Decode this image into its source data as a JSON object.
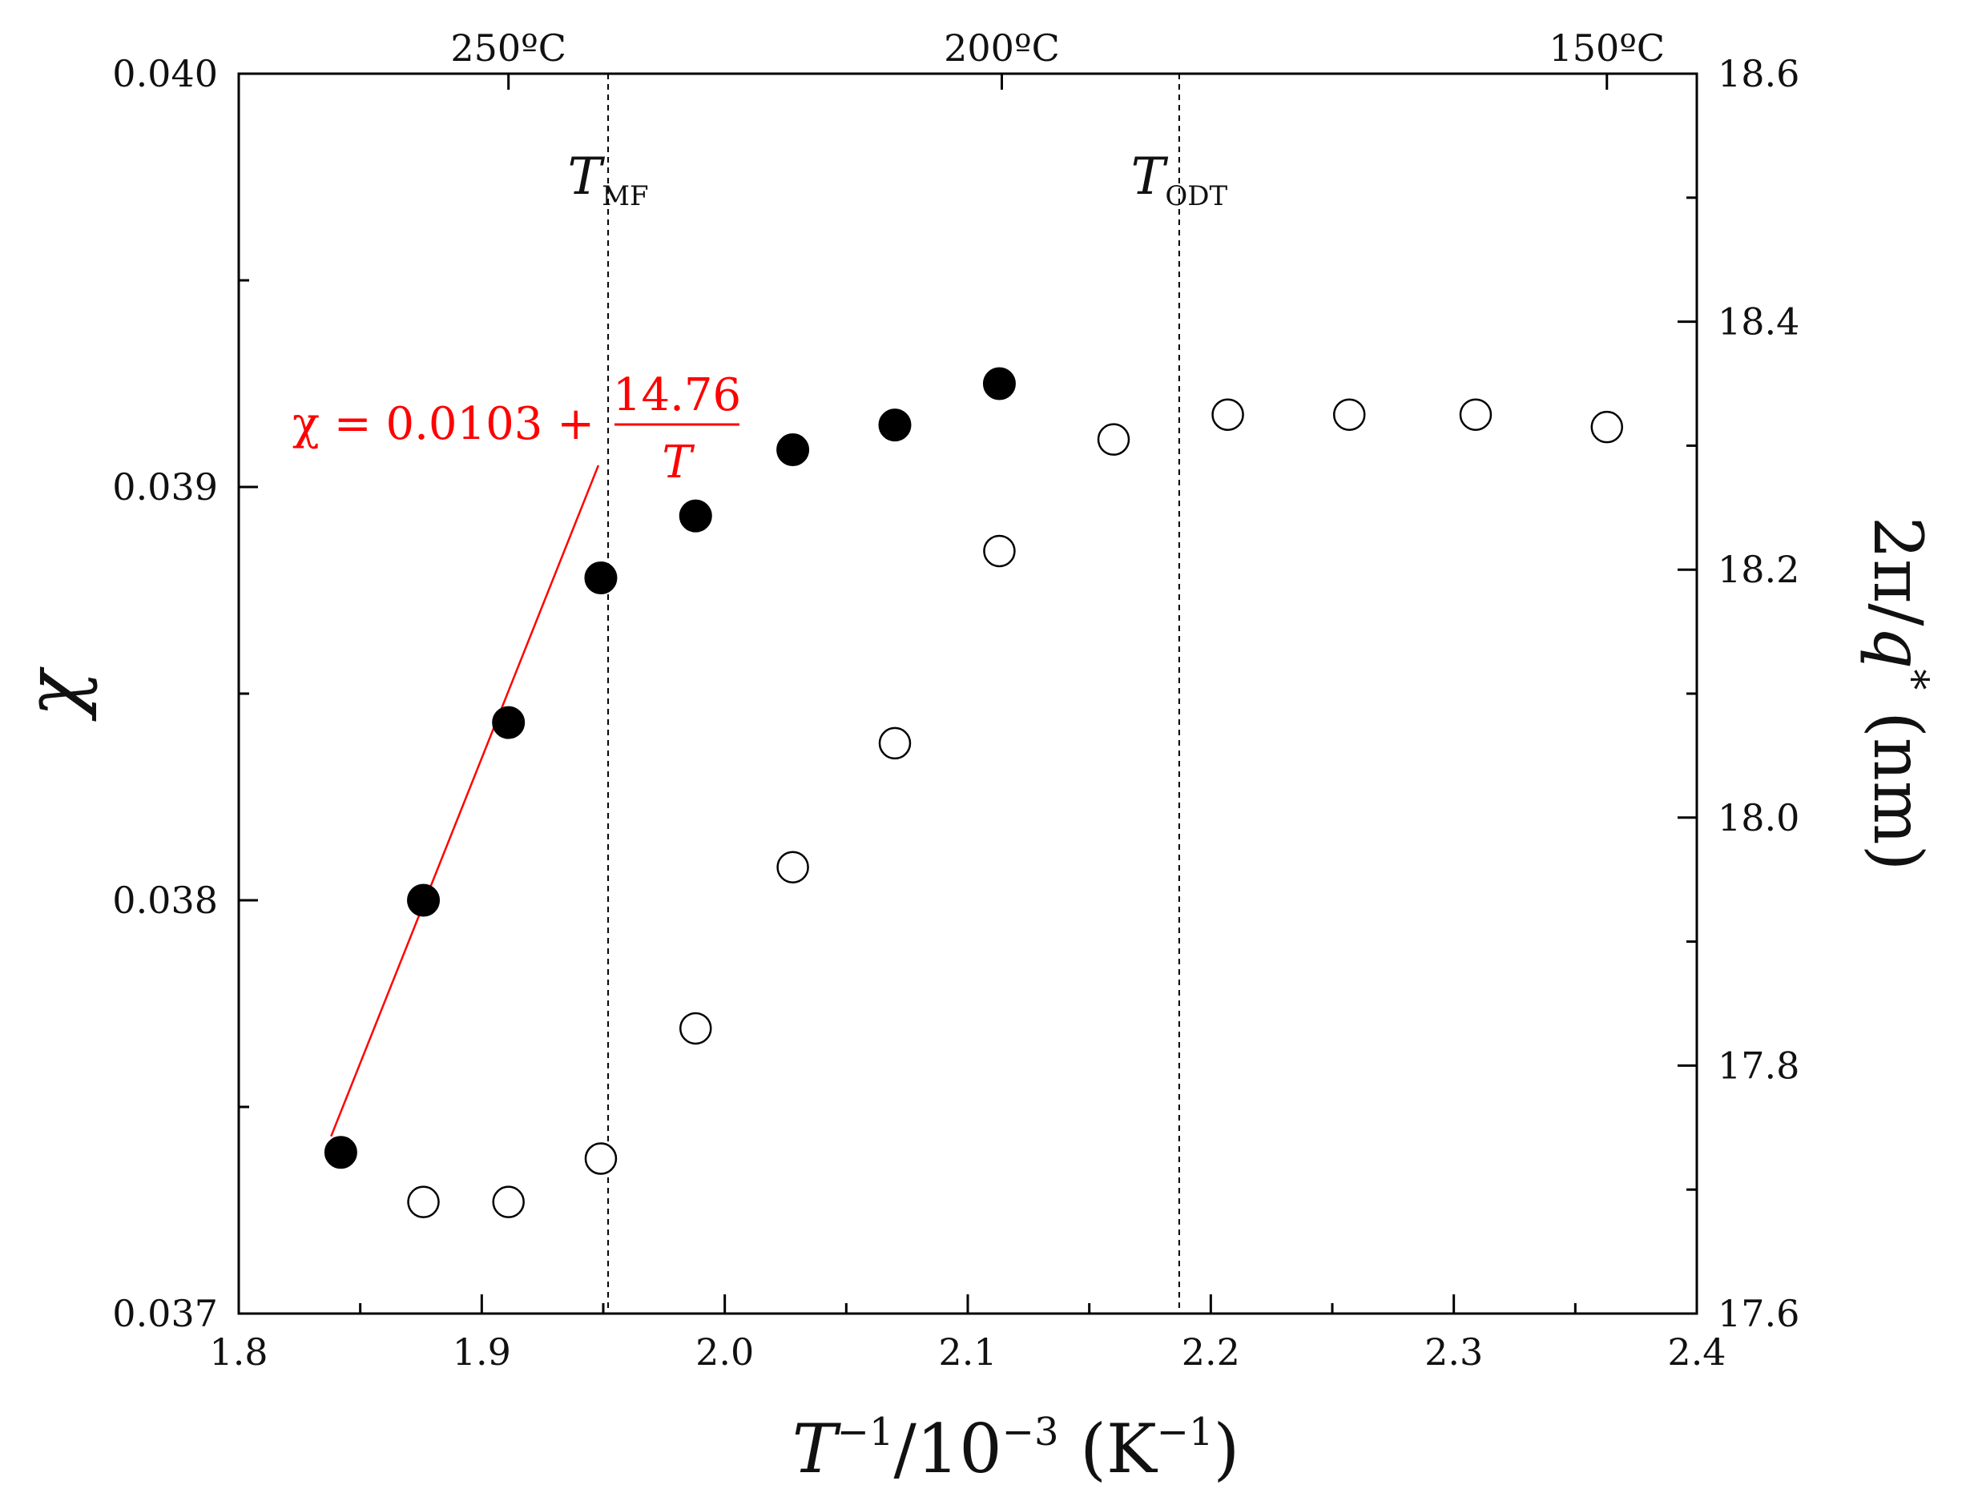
{
  "chart_data": {
    "type": "scatter",
    "title": "",
    "xlabel": "T⁻¹/10⁻³ (K⁻¹)",
    "xlabel_parts": {
      "t": "T",
      "sup1": "−1",
      "mid": "/10",
      "sup2": "−3",
      "open": " (K",
      "sup3": "−1",
      "close": ")"
    },
    "ylabel": "χ",
    "y2label": "2π/q* (nm)",
    "y2label_parts": {
      "pre": "2π/",
      "q": "q",
      "star": "*",
      "unit": " (nm)"
    },
    "xlim": [
      1.8,
      2.4
    ],
    "ylim": [
      0.037,
      0.04
    ],
    "y2lim": [
      17.6,
      18.6
    ],
    "x_ticks": [
      "1.8",
      "1.9",
      "2.0",
      "2.1",
      "2.2",
      "2.3",
      "2.4"
    ],
    "y_ticks": [
      "0.037",
      "0.038",
      "0.039",
      "0.040"
    ],
    "y2_ticks": [
      "17.6",
      "17.8",
      "18.0",
      "18.2",
      "18.4",
      "18.6"
    ],
    "top_axis": {
      "labels": [
        {
          "x": 1.911,
          "text": "250ºC"
        },
        {
          "x": 2.114,
          "text": "200ºC"
        },
        {
          "x": 2.363,
          "text": "150ºC"
        }
      ]
    },
    "vlines": [
      {
        "x": 1.952,
        "label": "T",
        "sub": "MF"
      },
      {
        "x": 2.187,
        "label": "T",
        "sub": "ODT"
      }
    ],
    "fit": {
      "equation": {
        "lhs": "χ = 0.0103 + ",
        "num": "14.76",
        "den": "T"
      },
      "x_range": [
        1.838,
        1.948
      ],
      "intercept": 0.0103,
      "slope": 14.76,
      "color": "#ff0000"
    },
    "series": [
      {
        "name": "χ",
        "axis": "left",
        "marker": "filled-circle",
        "color": "#000000",
        "x": [
          1.842,
          1.876,
          1.911,
          1.949,
          1.988,
          2.028,
          2.07,
          2.113
        ],
        "y": [
          0.03739,
          0.038,
          0.03843,
          0.03878,
          0.03893,
          0.03909,
          0.03915,
          0.03925
        ]
      },
      {
        "name": "2π/q*",
        "axis": "right",
        "marker": "open-circle",
        "color": "#000000",
        "x": [
          1.876,
          1.911,
          1.949,
          1.988,
          2.028,
          2.07,
          2.113,
          2.16,
          2.207,
          2.257,
          2.309,
          2.363
        ],
        "y": [
          17.69,
          17.69,
          17.725,
          17.83,
          17.96,
          18.06,
          18.215,
          18.305,
          18.325,
          18.325,
          18.325,
          18.315
        ]
      }
    ]
  }
}
